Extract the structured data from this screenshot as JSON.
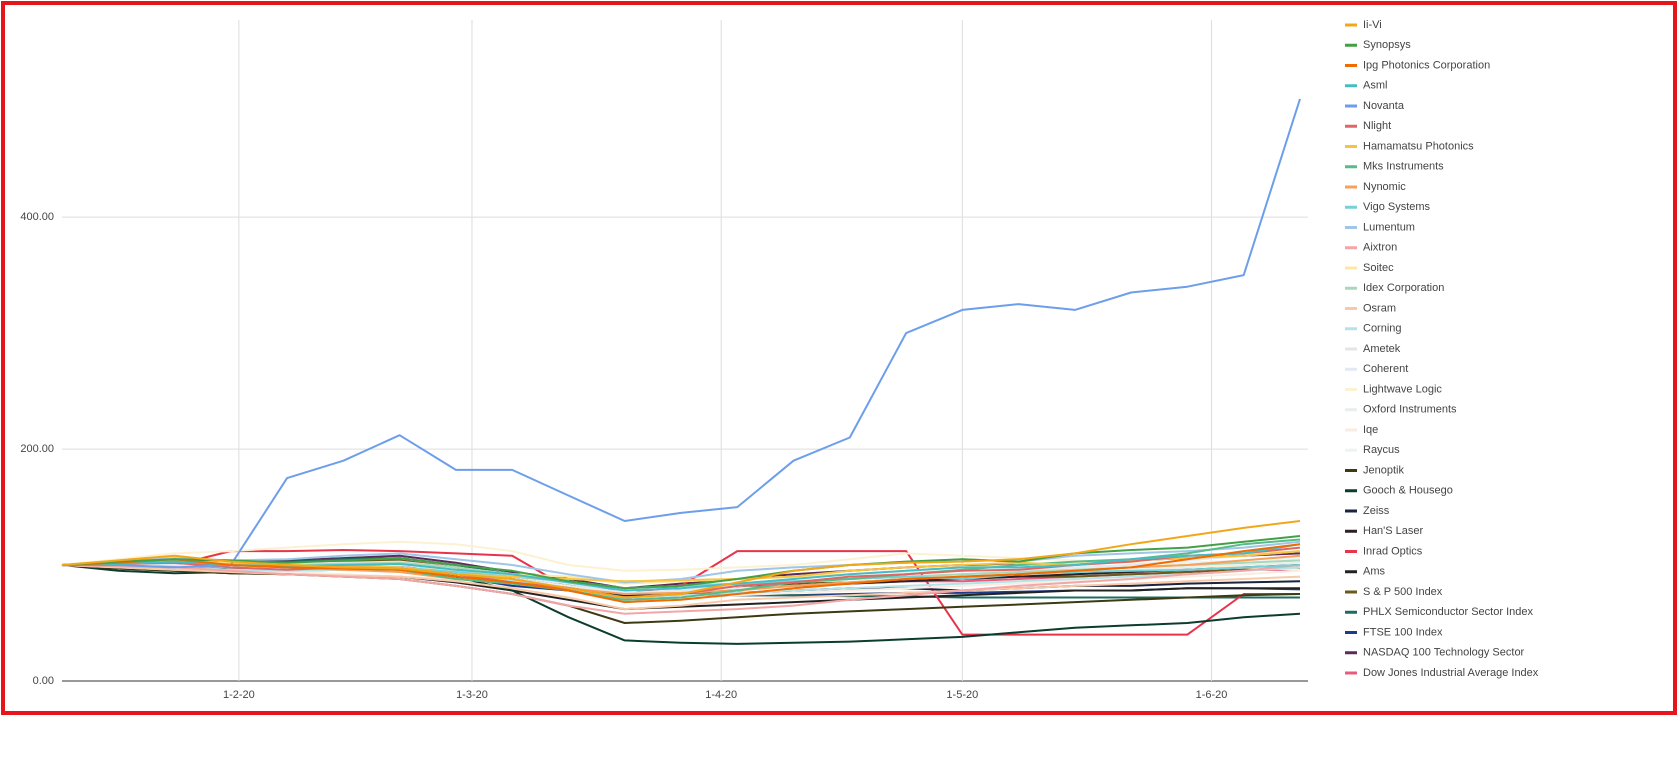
{
  "chart_data": {
    "type": "line",
    "x": [
      "10-1-20",
      "17-1-20",
      "24-1-20",
      "31-1-20",
      "7-2-20",
      "14-2-20",
      "21-2-20",
      "28-2-20",
      "6-3-20",
      "13-3-20",
      "20-3-20",
      "27-3-20",
      "3-4-20",
      "10-4-20",
      "17-4-20",
      "24-4-20",
      "1-5-20",
      "8-5-20",
      "15-5-20",
      "22-5-20",
      "29-5-20",
      "5-6-20",
      "12-6-20"
    ],
    "xlim": [
      "10-1-20",
      "13-6-20"
    ],
    "xticks": [
      "1-2-20",
      "1-3-20",
      "1-4-20",
      "1-5-20",
      "1-6-20"
    ],
    "ylim": [
      0,
      570
    ],
    "yticks": [
      {
        "value": 0,
        "label": "0.00"
      },
      {
        "value": 200,
        "label": "200.00"
      },
      {
        "value": 400,
        "label": "400.00"
      }
    ],
    "grid": true,
    "legend": "right",
    "series": [
      {
        "name": "Ii-Vi",
        "color": "#f2a71b",
        "values": [
          100,
          104,
          108,
          103,
          100,
          98,
          97,
          92,
          88,
          80,
          72,
          75,
          85,
          95,
          100,
          102,
          103,
          105,
          110,
          118,
          125,
          132,
          138
        ]
      },
      {
        "name": "Synopsys",
        "color": "#43a047",
        "values": [
          100,
          103,
          105,
          104,
          102,
          104,
          106,
          100,
          95,
          86,
          80,
          82,
          88,
          95,
          100,
          103,
          105,
          103,
          110,
          113,
          115,
          120,
          125
        ]
      },
      {
        "name": "Ipg Photonics Corporation",
        "color": "#ef6c00",
        "values": [
          100,
          102,
          105,
          100,
          98,
          97,
          96,
          90,
          85,
          78,
          68,
          70,
          75,
          80,
          84,
          88,
          90,
          92,
          95,
          98,
          105,
          112,
          118
        ]
      },
      {
        "name": "Asml",
        "color": "#46bdc6",
        "values": [
          100,
          101,
          103,
          100,
          99,
          100,
          101,
          96,
          92,
          85,
          78,
          80,
          84,
          88,
          92,
          95,
          98,
          98,
          100,
          105,
          108,
          110,
          118
        ]
      },
      {
        "name": "Novanta",
        "color": "#6d9eeb",
        "values": [
          100,
          100,
          98,
          100,
          175,
          190,
          212,
          182,
          182,
          160,
          138,
          145,
          150,
          190,
          210,
          300,
          320,
          325,
          320,
          335,
          340,
          350,
          502
        ]
      },
      {
        "name": "Nlight",
        "color": "#e06666",
        "values": [
          100,
          101,
          102,
          98,
          96,
          98,
          97,
          92,
          85,
          80,
          72,
          75,
          82,
          85,
          90,
          92,
          95,
          96,
          100,
          103,
          108,
          110,
          115
        ]
      },
      {
        "name": "Hamamatsu Photonics",
        "color": "#f6c342",
        "values": [
          100,
          102,
          103,
          101,
          100,
          99,
          98,
          92,
          90,
          88,
          86,
          87,
          88,
          90,
          95,
          98,
          100,
          102,
          100,
          104,
          106,
          108,
          112
        ]
      },
      {
        "name": "Mks Instruments",
        "color": "#57bb8a",
        "values": [
          100,
          102,
          104,
          100,
          98,
          97,
          96,
          88,
          84,
          78,
          70,
          72,
          78,
          85,
          88,
          92,
          96,
          100,
          103,
          105,
          110,
          118,
          122
        ]
      },
      {
        "name": "Nynomic",
        "color": "#f6a05c",
        "values": [
          100,
          101,
          103,
          100,
          98,
          96,
          94,
          88,
          84,
          80,
          75,
          76,
          78,
          82,
          85,
          88,
          90,
          92,
          95,
          98,
          100,
          104,
          108
        ]
      },
      {
        "name": "Vigo Systems",
        "color": "#76d0d8",
        "values": [
          100,
          101,
          102,
          100,
          99,
          100,
          98,
          94,
          90,
          86,
          80,
          82,
          84,
          86,
          88,
          90,
          88,
          92,
          94,
          95,
          96,
          98,
          100
        ]
      },
      {
        "name": "Lumentum",
        "color": "#9fc5e8",
        "values": [
          100,
          103,
          106,
          104,
          105,
          108,
          110,
          105,
          100,
          92,
          85,
          88,
          95,
          98,
          100,
          102,
          105,
          103,
          108,
          110,
          112,
          115,
          120
        ]
      },
      {
        "name": "Aixtron",
        "color": "#f4a6a6",
        "values": [
          100,
          99,
          98,
          95,
          92,
          90,
          88,
          82,
          75,
          65,
          58,
          60,
          62,
          65,
          70,
          74,
          78,
          82,
          85,
          88,
          92,
          95,
          100
        ]
      },
      {
        "name": "Soitec",
        "color": "#fce8a3",
        "values": [
          100,
          101,
          103,
          102,
          100,
          99,
          98,
          95,
          92,
          90,
          84,
          86,
          88,
          90,
          92,
          95,
          98,
          100,
          102,
          105,
          108,
          110,
          112
        ]
      },
      {
        "name": "Idex Corporation",
        "color": "#a8d8b9",
        "values": [
          100,
          101,
          102,
          101,
          100,
          101,
          102,
          98,
          92,
          86,
          80,
          82,
          84,
          86,
          88,
          90,
          92,
          94,
          96,
          98,
          100,
          102,
          104
        ]
      },
      {
        "name": "Osram",
        "color": "#f9c9a7",
        "values": [
          100,
          98,
          96,
          94,
          92,
          91,
          90,
          86,
          80,
          72,
          62,
          65,
          70,
          72,
          74,
          76,
          78,
          80,
          82,
          84,
          86,
          88,
          90
        ]
      },
      {
        "name": "Corning",
        "color": "#b5e2e6",
        "values": [
          100,
          99,
          98,
          96,
          95,
          96,
          97,
          92,
          86,
          80,
          72,
          74,
          76,
          78,
          80,
          82,
          84,
          86,
          88,
          90,
          92,
          95,
          98
        ]
      },
      {
        "name": "Ametek",
        "color": "#e5e5e5",
        "values": [
          100,
          102,
          103,
          102,
          101,
          102,
          103,
          98,
          92,
          86,
          78,
          80,
          82,
          85,
          88,
          90,
          92,
          94,
          96,
          98,
          100,
          102,
          104
        ]
      },
      {
        "name": "Coherent",
        "color": "#e3e9f3",
        "values": [
          100,
          101,
          100,
          98,
          97,
          98,
          100,
          96,
          90,
          84,
          76,
          78,
          82,
          86,
          88,
          90,
          92,
          95,
          98,
          100,
          104,
          108,
          112
        ]
      },
      {
        "name": "Lightwave Logic",
        "color": "#fcf1d2",
        "values": [
          100,
          105,
          110,
          112,
          115,
          118,
          120,
          118,
          112,
          100,
          95,
          96,
          98,
          100,
          105,
          110,
          108,
          106,
          104,
          102,
          100,
          98,
          96
        ]
      },
      {
        "name": "Oxford Instruments",
        "color": "#e9eee9",
        "values": [
          100,
          99,
          98,
          96,
          95,
          96,
          98,
          94,
          88,
          82,
          75,
          77,
          80,
          82,
          85,
          88,
          90,
          92,
          94,
          96,
          98,
          100,
          102
        ]
      },
      {
        "name": "Iqe",
        "color": "#f8ece3",
        "values": [
          100,
          98,
          96,
          95,
          94,
          92,
          90,
          88,
          85,
          80,
          70,
          72,
          74,
          76,
          78,
          80,
          82,
          84,
          86,
          88,
          90,
          92,
          95
        ]
      },
      {
        "name": "Raycus",
        "color": "#ebf3f4",
        "values": [
          100,
          101,
          102,
          100,
          99,
          98,
          97,
          95,
          92,
          90,
          85,
          86,
          88,
          90,
          92,
          94,
          95,
          96,
          98,
          100,
          102,
          104,
          106
        ]
      },
      {
        "name": "Jenoptik",
        "color": "#3d3a14",
        "values": [
          100,
          97,
          95,
          93,
          92,
          90,
          88,
          82,
          75,
          65,
          50,
          52,
          55,
          58,
          60,
          62,
          64,
          66,
          68,
          70,
          72,
          74,
          75
        ]
      },
      {
        "name": "Gooch & Housego",
        "color": "#0b3d2e",
        "values": [
          100,
          95,
          93,
          94,
          95,
          96,
          97,
          90,
          78,
          55,
          35,
          33,
          32,
          33,
          34,
          36,
          38,
          42,
          46,
          48,
          50,
          55,
          58
        ]
      },
      {
        "name": "Zeiss",
        "color": "#1a2340",
        "values": [
          100,
          99,
          98,
          97,
          98,
          99,
          100,
          95,
          88,
          80,
          74,
          75,
          76,
          78,
          80,
          80,
          78,
          80,
          82,
          82,
          84,
          85,
          86
        ]
      },
      {
        "name": "Han'S Laser",
        "color": "#2d1f26",
        "values": [
          100,
          99,
          98,
          97,
          96,
          97,
          98,
          95,
          92,
          88,
          75,
          78,
          80,
          82,
          84,
          86,
          88,
          90,
          92,
          94,
          96,
          98,
          100
        ]
      },
      {
        "name": "Inrad Optics",
        "color": "#e8334a",
        "values": [
          100,
          100,
          100,
          112,
          112,
          113,
          112,
          110,
          108,
          80,
          75,
          82,
          112,
          112,
          112,
          112,
          40,
          40,
          40,
          40,
          40,
          75,
          75
        ]
      },
      {
        "name": "Ams",
        "color": "#222222",
        "values": [
          100,
          97,
          95,
          93,
          92,
          91,
          90,
          85,
          78,
          70,
          62,
          64,
          66,
          68,
          70,
          72,
          74,
          76,
          78,
          78,
          80,
          80,
          80
        ]
      },
      {
        "name": "S & P 500 Index",
        "color": "#6b5a1a",
        "values": [
          100,
          101,
          102,
          101,
          102,
          103,
          104,
          98,
          88,
          82,
          72,
          75,
          80,
          84,
          85,
          88,
          88,
          90,
          90,
          92,
          94,
          96,
          97
        ]
      },
      {
        "name": "PHLX Semiconductor Sector Index",
        "color": "#1e6b60",
        "values": [
          100,
          102,
          104,
          102,
          103,
          105,
          106,
          100,
          92,
          84,
          72,
          75,
          74,
          74,
          73,
          73,
          72,
          72,
          72,
          72,
          72,
          72,
          72
        ]
      },
      {
        "name": "FTSE 100 Index",
        "color": "#203a8a",
        "values": [
          100,
          99,
          98,
          97,
          96,
          97,
          96,
          90,
          82,
          78,
          70,
          72,
          74,
          74,
          75,
          76,
          76,
          77,
          78,
          78,
          80,
          80,
          79
        ]
      },
      {
        "name": "NASDAQ 100 Technology Sector",
        "color": "#5a2b5a",
        "values": [
          100,
          102,
          104,
          103,
          104,
          106,
          108,
          102,
          94,
          88,
          80,
          84,
          88,
          92,
          95,
          98,
          100,
          100,
          102,
          104,
          106,
          108,
          110
        ]
      },
      {
        "name": "Dow Jones Industrial Average Index",
        "color": "#e85b7a",
        "values": [
          100,
          101,
          102,
          101,
          102,
          103,
          104,
          98,
          88,
          82,
          72,
          75,
          80,
          84,
          84,
          86,
          86,
          88,
          90,
          92,
          94,
          96,
          96
        ]
      }
    ]
  }
}
